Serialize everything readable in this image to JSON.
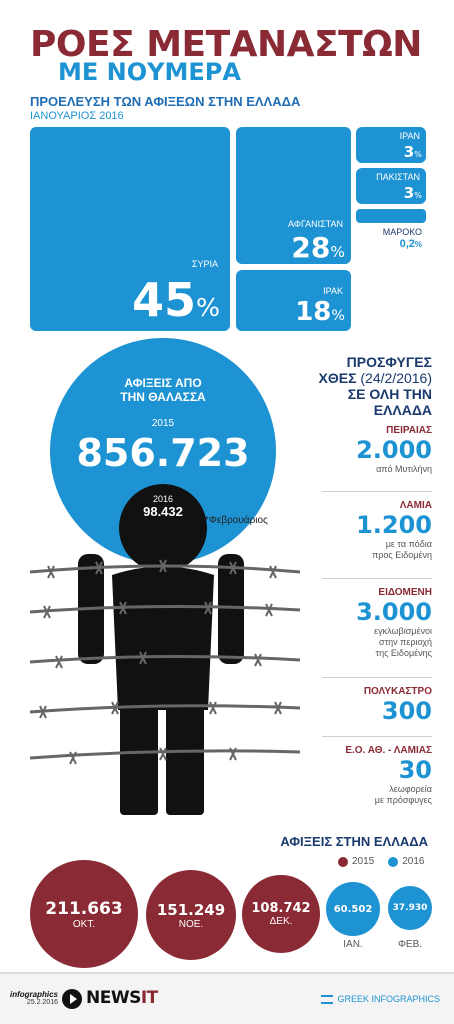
{
  "title": {
    "line1": "ΡΟΕΣ ΜΕΤΑΝΑΣΤΩΝ",
    "line2": "ΜΕ ΝΟΥΜΕΡΑ"
  },
  "origin": {
    "heading": "ΠΡΟΕΛΕΥΣΗ ΤΩΝ ΑΦΙΞΕΩΝ  ΣΤΗΝ ΕΛΛΑΔΑ",
    "period": "ΙΑΝΟΥΑΡΙΟΣ 2016",
    "tiles": [
      {
        "label": "ΣΥΡΙΑ",
        "value": "45",
        "unit": "%"
      },
      {
        "label": "ΑΦΓΑΝΙΣΤΑΝ",
        "value": "28",
        "unit": "%"
      },
      {
        "label": "ΙΡΑΚ",
        "value": "18",
        "unit": "%"
      },
      {
        "label": "ΙΡΑΝ",
        "value": "3",
        "unit": "%"
      },
      {
        "label": "ΠΑΚΙΣΤΑΝ",
        "value": "3",
        "unit": "%"
      },
      {
        "label": "ΜΑΡΟΚΟ",
        "value": "0,2",
        "unit": "%"
      }
    ]
  },
  "sea_arrivals": {
    "heading_line1": "ΑΦΙΞΕΙΣ ΑΠΟ",
    "heading_line2": "ΤΗΝ ΘΑΛΑΣΣΑ",
    "year_2015": "2015",
    "value_2015": "856.723",
    "year_2016": "2016",
    "value_2016": "98.432",
    "note": "*Φεβρουάριος"
  },
  "refugees": {
    "heading_line1": "ΠΡΟΣΦΥΓΕΣ",
    "heading_line2_bold": "ΧΘΕΣ",
    "heading_line2_rest": " (24/2/2016)",
    "heading_line3": "ΣΕ ΟΛΗ ΤΗΝ",
    "heading_line4": "ΕΛΛΑΔΑ",
    "items": [
      {
        "place": "ΠΕΙΡΑΙΑΣ",
        "number": "2.000",
        "text1": "από Μυτιλήνη",
        "text2": "",
        "text3": ""
      },
      {
        "place": "ΛΑΜΙΑ",
        "number": "1.200",
        "text1": "με τα πόδια",
        "text2": "προς Ειδομένη",
        "text3": ""
      },
      {
        "place": "ΕΙΔΟΜΕΝΗ",
        "number": "3.000",
        "text1": "εγκλωβισμένοι",
        "text2": "στην περιοχή",
        "text3": "της Ειδομένης"
      },
      {
        "place": "ΠΟΛΥΚΑΣΤΡΟ",
        "number": "300",
        "text1": "",
        "text2": "",
        "text3": ""
      },
      {
        "place": "Ε.Ο. ΑΘ. - ΛΑΜΙΑΣ",
        "number": "30",
        "text1": "λεωφορεία",
        "text2": "με πρόσφυγες",
        "text3": ""
      }
    ]
  },
  "monthly": {
    "heading": "ΑΦΙΞΕΙΣ ΣΤΗΝ ΕΛΛΑΔΑ",
    "legend_2015": "2015",
    "legend_2016": "2016",
    "items": [
      {
        "value": "211.663",
        "month": "ΟΚΤ."
      },
      {
        "value": "151.249",
        "month": "ΝΟΕ."
      },
      {
        "value": "108.742",
        "month": "ΔΕΚ."
      },
      {
        "value": "60.502",
        "month": "ΙΑΝ."
      },
      {
        "value": "37.930",
        "month": "ΦΕΒ."
      }
    ]
  },
  "footer": {
    "infographics": "infographics",
    "date": "25.2.2016",
    "brand": "NEWS",
    "brand_suffix": "IT",
    "credit": "GREEK INFOGRAPHICS"
  },
  "colors": {
    "blue": "#1e93d3",
    "maroon": "#8a2a34",
    "navy": "#1a3a6e"
  }
}
